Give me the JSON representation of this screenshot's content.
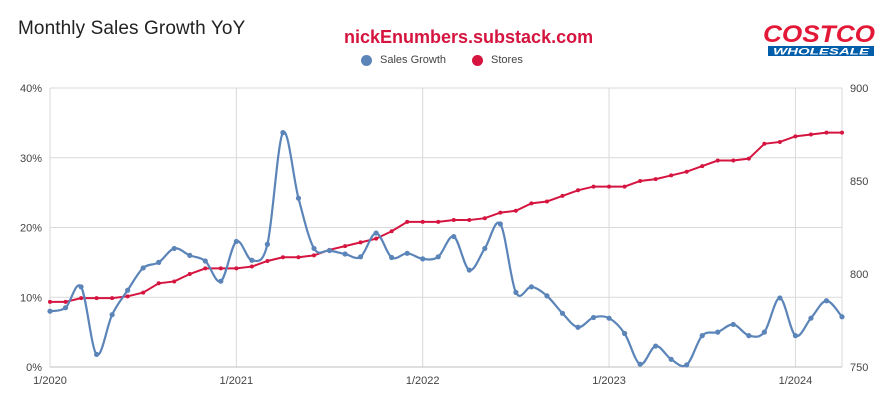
{
  "title": "Monthly Sales Growth YoY",
  "subtitle": "nickEnumbers.substack.com",
  "logo": {
    "line1": "COSTCO",
    "line2": "WHOLESALE",
    "color_red": "#e31837",
    "color_blue": "#005daa"
  },
  "colors": {
    "sales": "#5b84b9",
    "stores": "#d5143f",
    "grid": "#d9d9d9"
  },
  "chart_data": {
    "type": "line",
    "title": "Monthly Sales Growth YoY",
    "legend_position": "top",
    "grid": true,
    "x_ticks": [
      {
        "label": "1/2020",
        "t": 0
      },
      {
        "label": "1/2021",
        "t": 12
      },
      {
        "label": "1/2022",
        "t": 24
      },
      {
        "label": "1/2023",
        "t": 36
      },
      {
        "label": "1/2024",
        "t": 48
      }
    ],
    "x_range": [
      0,
      51
    ],
    "y_left": {
      "min": 0,
      "max": 40,
      "ticks": [
        "0%",
        "10%",
        "20%",
        "30%",
        "40%"
      ],
      "tick_values": [
        0,
        10,
        20,
        30,
        40
      ]
    },
    "y_right": {
      "min": 750,
      "max": 900,
      "ticks": [
        "750",
        "800",
        "850",
        "900"
      ],
      "tick_values": [
        750,
        800,
        850,
        900
      ]
    },
    "series": [
      {
        "name": "Sales Growth",
        "axis": "left",
        "smooth": true,
        "x": [
          0,
          1,
          2,
          3,
          4,
          5,
          6,
          7,
          8,
          9,
          10,
          11,
          12,
          13,
          14,
          15,
          16,
          17,
          18,
          19,
          20,
          21,
          22,
          23,
          24,
          25,
          26,
          27,
          28,
          29,
          30,
          31,
          32,
          33,
          34,
          35,
          36,
          37,
          38,
          39,
          40,
          41,
          42,
          43,
          44,
          45,
          46,
          47,
          48,
          49,
          50,
          51
        ],
        "values": [
          8.0,
          8.5,
          11.5,
          1.8,
          7.5,
          11.0,
          14.2,
          15.0,
          17.0,
          16.0,
          15.2,
          12.3,
          18.0,
          15.3,
          17.6,
          33.6,
          24.2,
          17.0,
          16.7,
          16.2,
          15.8,
          19.2,
          15.7,
          16.3,
          15.5,
          15.8,
          18.7,
          13.9,
          17.0,
          20.5,
          10.7,
          11.5,
          10.2,
          7.7,
          5.7,
          7.1,
          7.0,
          4.8,
          0.4,
          3.0,
          1.1,
          0.3,
          4.5,
          5.0,
          6.1,
          4.5,
          5.0,
          9.9,
          4.5,
          7.0,
          9.5,
          7.2
        ]
      },
      {
        "name": "Stores",
        "axis": "right",
        "smooth": false,
        "x": [
          0,
          1,
          2,
          3,
          4,
          5,
          6,
          7,
          8,
          9,
          10,
          11,
          12,
          13,
          14,
          15,
          16,
          17,
          18,
          19,
          20,
          21,
          22,
          23,
          24,
          25,
          26,
          27,
          28,
          29,
          30,
          31,
          32,
          33,
          34,
          35,
          36,
          37,
          38,
          39,
          40,
          41,
          42,
          43,
          44,
          45,
          46,
          47,
          48,
          49,
          50,
          51
        ],
        "values": [
          785,
          785,
          787,
          787,
          787,
          788,
          790,
          795,
          796,
          800,
          803,
          803,
          803,
          804,
          807,
          809,
          809,
          810,
          813,
          815,
          817,
          819,
          823,
          828,
          828,
          828,
          829,
          829,
          830,
          833,
          834,
          838,
          839,
          842,
          845,
          847,
          847,
          847,
          850,
          851,
          853,
          855,
          858,
          861,
          861,
          862,
          870,
          871,
          874,
          875,
          876,
          876
        ]
      }
    ]
  }
}
